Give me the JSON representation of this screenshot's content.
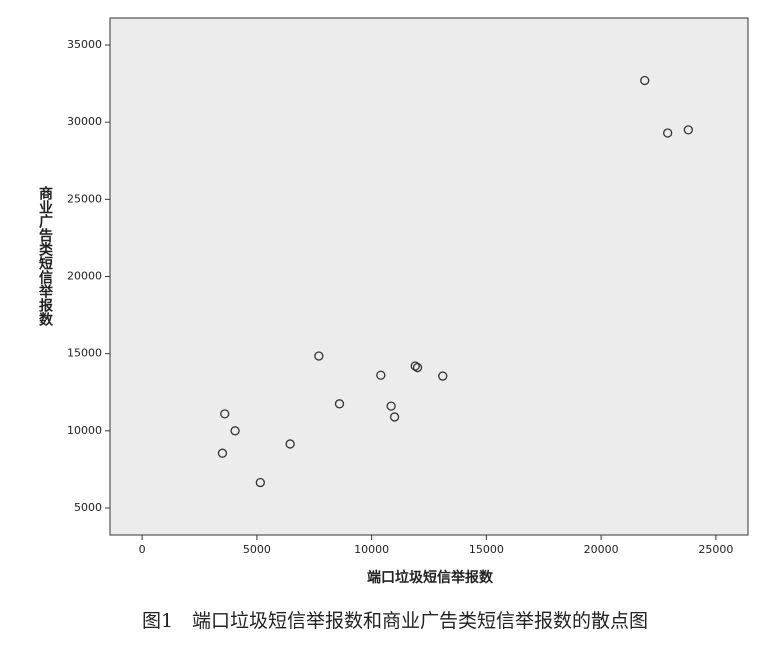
{
  "chart_data": {
    "type": "scatter",
    "x_label": "端口垃圾短信举报数",
    "y_label": "商业广告类短信举报数",
    "caption": "图1　端口垃圾短信举报数和商业广告类短信举报数的散点图",
    "x": [
      21900,
      22900,
      23800,
      7700,
      10400,
      11900,
      12000,
      13100,
      8600,
      10850,
      11000,
      3600,
      4050,
      3500,
      6450,
      5150
    ],
    "values": [
      32700,
      29300,
      29500,
      14850,
      13600,
      14200,
      14100,
      13550,
      11750,
      11600,
      10900,
      11100,
      10000,
      8550,
      9150,
      6650
    ],
    "color": "#333333",
    "xlim": [
      -1400,
      26400
    ],
    "ylim": [
      3250,
      36750
    ],
    "xticks": [
      0,
      5000,
      10000,
      15000,
      20000,
      25000
    ],
    "yticks": [
      5000,
      10000,
      15000,
      20000,
      25000,
      30000,
      35000
    ]
  }
}
